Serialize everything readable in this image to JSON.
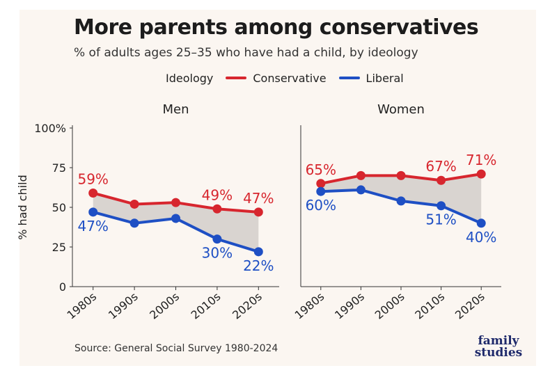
{
  "title": "More parents among conservatives",
  "subtitle": "% of adults ages 25–35 who have had a child, by ideology",
  "legend": {
    "title": "Ideology",
    "items": [
      "Conservative",
      "Liberal"
    ]
  },
  "source": "Source: General Social Survey 1980-2024",
  "logo": {
    "line1": "family",
    "line2": "studies"
  },
  "colors": {
    "conservative": "#d7262e",
    "liberal": "#1e4fc4",
    "gap_fill": "#d9d4d0",
    "background": "#fbf6f1"
  },
  "chart_data": [
    {
      "type": "line",
      "title": "Men",
      "ylabel": "% had child",
      "categories": [
        "1980s",
        "1990s",
        "2000s",
        "2010s",
        "2020s"
      ],
      "yticks": [
        "0",
        "25",
        "50",
        "75",
        "100%"
      ],
      "ylim": [
        0,
        100
      ],
      "series": [
        {
          "name": "Conservative",
          "values": [
            59,
            52,
            53,
            49,
            47
          ]
        },
        {
          "name": "Liberal",
          "values": [
            47,
            40,
            43,
            30,
            22
          ]
        }
      ],
      "labels": [
        {
          "series": 0,
          "index": 0,
          "text": "59%"
        },
        {
          "series": 0,
          "index": 3,
          "text": "49%"
        },
        {
          "series": 0,
          "index": 4,
          "text": "47%"
        },
        {
          "series": 1,
          "index": 0,
          "text": "47%"
        },
        {
          "series": 1,
          "index": 3,
          "text": "30%"
        },
        {
          "series": 1,
          "index": 4,
          "text": "22%"
        }
      ]
    },
    {
      "type": "line",
      "title": "Women",
      "categories": [
        "1980s",
        "1990s",
        "2000s",
        "2010s",
        "2020s"
      ],
      "ylim": [
        0,
        100
      ],
      "series": [
        {
          "name": "Conservative",
          "values": [
            65,
            70,
            70,
            67,
            71
          ]
        },
        {
          "name": "Liberal",
          "values": [
            60,
            61,
            54,
            51,
            40
          ]
        }
      ],
      "labels": [
        {
          "series": 0,
          "index": 0,
          "text": "65%"
        },
        {
          "series": 0,
          "index": 3,
          "text": "67%"
        },
        {
          "series": 0,
          "index": 4,
          "text": "71%"
        },
        {
          "series": 1,
          "index": 0,
          "text": "60%"
        },
        {
          "series": 1,
          "index": 3,
          "text": "51%"
        },
        {
          "series": 1,
          "index": 4,
          "text": "40%"
        }
      ]
    }
  ]
}
